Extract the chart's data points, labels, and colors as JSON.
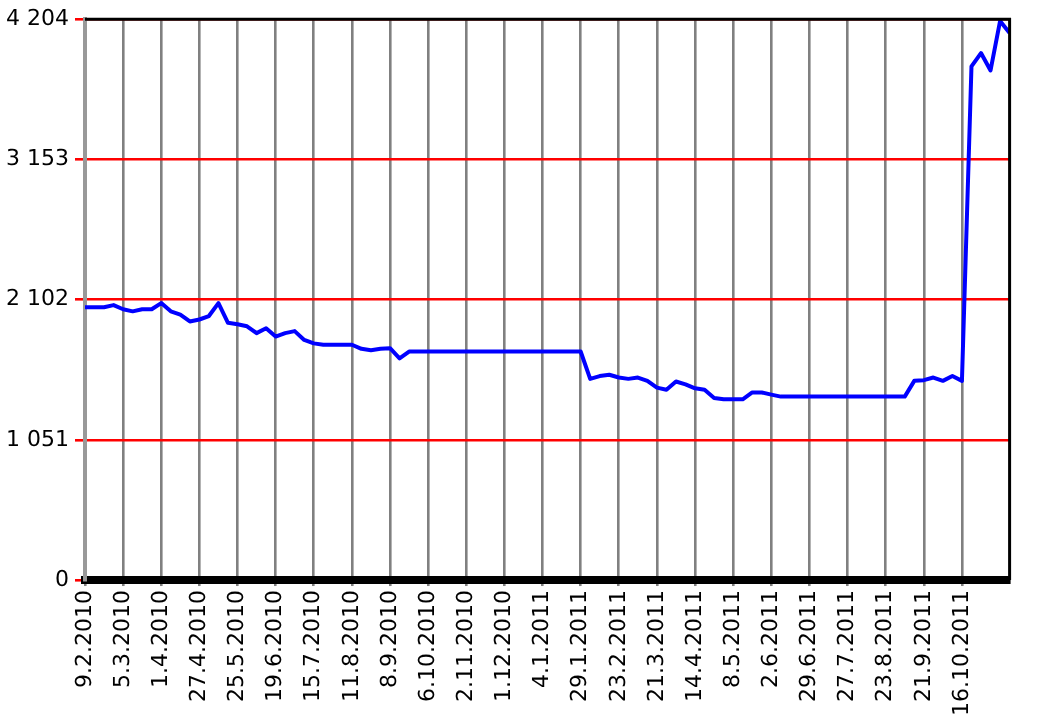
{
  "chart_data": {
    "type": "line",
    "categories": [
      "9.2.2010",
      null,
      null,
      null,
      "5.3.2010",
      null,
      null,
      null,
      "1.4.2010",
      null,
      null,
      null,
      "27.4.2010",
      null,
      null,
      null,
      "25.5.2010",
      null,
      null,
      null,
      "19.6.2010",
      null,
      null,
      null,
      "15.7.2010",
      null,
      null,
      null,
      "11.8.2010",
      null,
      null,
      null,
      "8.9.2010",
      null,
      null,
      null,
      "6.10.2010",
      null,
      null,
      null,
      "2.11.2010",
      null,
      null,
      null,
      "1.12.2010",
      null,
      null,
      null,
      "4.1.2011",
      null,
      null,
      null,
      "29.1.2011",
      null,
      null,
      null,
      "23.2.2011",
      null,
      null,
      null,
      "21.3.2011",
      null,
      null,
      null,
      "14.4.2011",
      null,
      null,
      null,
      "8.5.2011",
      null,
      null,
      null,
      "2.6.2011",
      null,
      null,
      null,
      "29.6.2011",
      null,
      null,
      null,
      "27.7.2011",
      null,
      null,
      null,
      "23.8.2011",
      null,
      null,
      null,
      "21.9.2011",
      null,
      null,
      null,
      "16.10.2011",
      null,
      null,
      null,
      null,
      null
    ],
    "series": [
      {
        "color": "#0000ff",
        "values": [
          2045,
          2045,
          2045,
          2061,
          2030,
          2014,
          2030,
          2030,
          2076,
          2014,
          1989,
          1938,
          1953,
          1979,
          2076,
          1928,
          1917,
          1902,
          1851,
          1887,
          1825,
          1851,
          1866,
          1800,
          1774,
          1764,
          1764,
          1764,
          1764,
          1733,
          1723,
          1733,
          1738,
          1662,
          1713,
          1713,
          1713,
          1713,
          1713,
          1713,
          1713,
          1713,
          1713,
          1713,
          1713,
          1713,
          1713,
          1713,
          1713,
          1713,
          1713,
          1713,
          1713,
          1508,
          1529,
          1539,
          1518,
          1508,
          1518,
          1493,
          1442,
          1426,
          1488,
          1467,
          1437,
          1426,
          1365,
          1355,
          1355,
          1355,
          1406,
          1406,
          1390,
          1375,
          1375,
          1375,
          1375,
          1375,
          1375,
          1375,
          1375,
          1375,
          1375,
          1375,
          1375,
          1375,
          1375,
          1493,
          1498,
          1518,
          1493,
          1529,
          1493,
          3850,
          3950,
          3820,
          4190,
          4100
        ]
      }
    ],
    "ylim": [
      0,
      4204
    ],
    "yticks": [
      0,
      {
        "value": 1051,
        "label": "1 051"
      },
      {
        "value": 2102,
        "label": "2 102"
      },
      {
        "value": 3153,
        "label": "3 153"
      },
      {
        "value": 4204,
        "label": "4 204"
      }
    ],
    "grid": true
  }
}
